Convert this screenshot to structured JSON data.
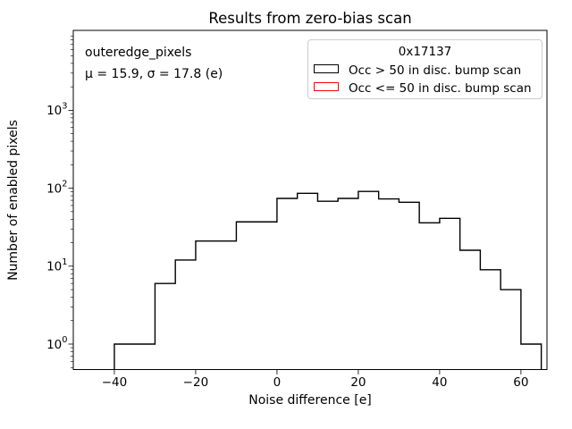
{
  "figure": {
    "title": "Results from zero-bias scan",
    "xlabel": "Noise difference [e]",
    "ylabel": "Number of enabled pixels"
  },
  "annotation": {
    "dataset": "outeredge_pixels",
    "stats": "μ = 15.9, σ = 17.8 (e)"
  },
  "legend": {
    "title": "0x17137",
    "entries": [
      {
        "label": "Occ > 50 in disc. bump scan",
        "color": "#000000"
      },
      {
        "label": "Occ <= 50 in disc. bump scan",
        "color": "#ff0000"
      }
    ]
  },
  "chart_data": {
    "type": "bar",
    "subtype": "step-histogram",
    "title": "Results from zero-bias scan",
    "xlabel": "Noise difference [e]",
    "ylabel": "Number of enabled pixels",
    "yscale": "log",
    "grid": false,
    "legend_position": "upper right",
    "bin_edges": [
      -40,
      -35,
      -30,
      -25,
      -20,
      -15,
      -10,
      -5,
      0,
      5,
      10,
      15,
      20,
      25,
      30,
      35,
      40,
      45,
      50,
      55,
      60,
      65
    ],
    "series": [
      {
        "name": "Occ > 50 in disc. bump scan",
        "color": "#000000",
        "counts": [
          1,
          1,
          6,
          12,
          21,
          21,
          37,
          37,
          74,
          86,
          68,
          74,
          91,
          73,
          66,
          36,
          41,
          16,
          9,
          5,
          1
        ]
      },
      {
        "name": "Occ <= 50 in disc. bump scan",
        "color": "#ff0000",
        "counts": []
      }
    ],
    "stats": {
      "mu": 15.9,
      "sigma": 17.8,
      "total_entries": 776
    },
    "x_ticks": [
      {
        "value": -40,
        "label": "−40"
      },
      {
        "value": -20,
        "label": "−20"
      },
      {
        "value": 0,
        "label": "0"
      },
      {
        "value": 20,
        "label": "20"
      },
      {
        "value": 40,
        "label": "40"
      },
      {
        "value": 60,
        "label": "60"
      }
    ],
    "y_ticks": [
      {
        "value": 1,
        "exp": 0
      },
      {
        "value": 10,
        "exp": 1
      },
      {
        "value": 100,
        "exp": 2
      },
      {
        "value": 1000,
        "exp": 3
      }
    ],
    "xlim": [
      -50.1,
      66.4
    ],
    "ylim": [
      0.471,
      10600
    ]
  }
}
